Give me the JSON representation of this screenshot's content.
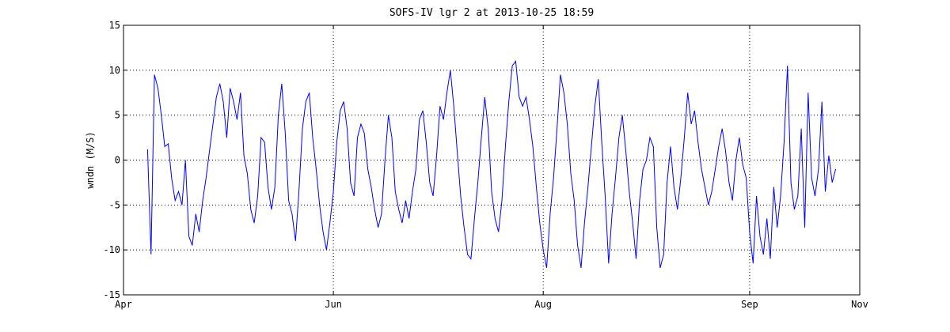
{
  "chart_data": {
    "type": "line",
    "title": "SOFS-IV lgr 2 at 2013-10-25 18:59",
    "xlabel": "",
    "ylabel": "wndn (M/S)",
    "xlim": [
      "2013-04-01",
      "2013-11-01"
    ],
    "ylim": [
      -15,
      15
    ],
    "x_ticks": [
      {
        "date": "2013-04-01",
        "label": "Apr"
      },
      {
        "date": "2013-06-01",
        "label": "Jun"
      },
      {
        "date": "2013-08-01",
        "label": "Aug"
      },
      {
        "date": "2013-09-30",
        "label": "Sep"
      },
      {
        "date": "2013-11-01",
        "label": "Nov"
      }
    ],
    "y_ticks": [
      15,
      10,
      5,
      0,
      -5,
      -10,
      -15
    ],
    "grid": true,
    "line_color": "#0000ff",
    "series": [
      {
        "name": "",
        "points": [
          [
            "2013-04-08",
            1.2
          ],
          [
            "2013-04-09",
            -10.5
          ],
          [
            "2013-04-10",
            9.5
          ],
          [
            "2013-04-11",
            8.0
          ],
          [
            "2013-04-12",
            5.0
          ],
          [
            "2013-04-13",
            1.5
          ],
          [
            "2013-04-14",
            1.8
          ],
          [
            "2013-04-15",
            -2.0
          ],
          [
            "2013-04-16",
            -4.5
          ],
          [
            "2013-04-17",
            -3.5
          ],
          [
            "2013-04-18",
            -5.0
          ],
          [
            "2013-04-19",
            0.0
          ],
          [
            "2013-04-20",
            -8.5
          ],
          [
            "2013-04-21",
            -9.5
          ],
          [
            "2013-04-22",
            -6.0
          ],
          [
            "2013-04-23",
            -8.0
          ],
          [
            "2013-04-24",
            -4.5
          ],
          [
            "2013-04-25",
            -2.0
          ],
          [
            "2013-04-26",
            1.0
          ],
          [
            "2013-04-27",
            4.0
          ],
          [
            "2013-04-28",
            7.0
          ],
          [
            "2013-04-29",
            8.5
          ],
          [
            "2013-04-30",
            6.5
          ],
          [
            "2013-05-01",
            2.5
          ],
          [
            "2013-05-02",
            8.0
          ],
          [
            "2013-05-03",
            6.5
          ],
          [
            "2013-05-04",
            4.5
          ],
          [
            "2013-05-05",
            7.5
          ],
          [
            "2013-05-06",
            0.5
          ],
          [
            "2013-05-07",
            -1.5
          ],
          [
            "2013-05-08",
            -5.5
          ],
          [
            "2013-05-09",
            -7.0
          ],
          [
            "2013-05-10",
            -4.0
          ],
          [
            "2013-05-11",
            2.5
          ],
          [
            "2013-05-12",
            2.0
          ],
          [
            "2013-05-13",
            -3.0
          ],
          [
            "2013-05-14",
            -5.5
          ],
          [
            "2013-05-15",
            -3.0
          ],
          [
            "2013-05-16",
            5.0
          ],
          [
            "2013-05-17",
            8.5
          ],
          [
            "2013-05-18",
            3.0
          ],
          [
            "2013-05-19",
            -4.5
          ],
          [
            "2013-05-20",
            -6.0
          ],
          [
            "2013-05-21",
            -9.0
          ],
          [
            "2013-05-22",
            -3.5
          ],
          [
            "2013-05-23",
            3.5
          ],
          [
            "2013-05-24",
            6.5
          ],
          [
            "2013-05-25",
            7.5
          ],
          [
            "2013-05-26",
            2.5
          ],
          [
            "2013-05-27",
            -1.0
          ],
          [
            "2013-05-28",
            -5.0
          ],
          [
            "2013-05-29",
            -8.0
          ],
          [
            "2013-05-30",
            -10.0
          ],
          [
            "2013-05-31",
            -7.0
          ],
          [
            "2013-06-01",
            -3.5
          ],
          [
            "2013-06-02",
            2.0
          ],
          [
            "2013-06-03",
            5.5
          ],
          [
            "2013-06-04",
            6.5
          ],
          [
            "2013-06-05",
            3.5
          ],
          [
            "2013-06-06",
            -2.5
          ],
          [
            "2013-06-07",
            -4.0
          ],
          [
            "2013-06-08",
            2.5
          ],
          [
            "2013-06-09",
            4.0
          ],
          [
            "2013-06-10",
            3.0
          ],
          [
            "2013-06-11",
            -1.0
          ],
          [
            "2013-06-12",
            -3.0
          ],
          [
            "2013-06-13",
            -5.5
          ],
          [
            "2013-06-14",
            -7.5
          ],
          [
            "2013-06-15",
            -6.0
          ],
          [
            "2013-06-16",
            0.0
          ],
          [
            "2013-06-17",
            5.0
          ],
          [
            "2013-06-18",
            2.5
          ],
          [
            "2013-06-19",
            -3.5
          ],
          [
            "2013-06-20",
            -5.5
          ],
          [
            "2013-06-21",
            -7.0
          ],
          [
            "2013-06-22",
            -4.5
          ],
          [
            "2013-06-23",
            -6.5
          ],
          [
            "2013-06-24",
            -3.5
          ],
          [
            "2013-06-25",
            -1.0
          ],
          [
            "2013-06-26",
            4.5
          ],
          [
            "2013-06-27",
            5.5
          ],
          [
            "2013-06-28",
            2.0
          ],
          [
            "2013-06-29",
            -2.5
          ],
          [
            "2013-06-30",
            -4.0
          ],
          [
            "2013-07-01",
            0.5
          ],
          [
            "2013-07-02",
            6.0
          ],
          [
            "2013-07-03",
            4.5
          ],
          [
            "2013-07-04",
            7.5
          ],
          [
            "2013-07-05",
            10.0
          ],
          [
            "2013-07-06",
            6.0
          ],
          [
            "2013-07-07",
            1.0
          ],
          [
            "2013-07-08",
            -4.0
          ],
          [
            "2013-07-09",
            -7.5
          ],
          [
            "2013-07-10",
            -10.5
          ],
          [
            "2013-07-11",
            -11.0
          ],
          [
            "2013-07-12",
            -6.5
          ],
          [
            "2013-07-13",
            -2.5
          ],
          [
            "2013-07-14",
            2.5
          ],
          [
            "2013-07-15",
            7.0
          ],
          [
            "2013-07-16",
            3.5
          ],
          [
            "2013-07-17",
            -3.5
          ],
          [
            "2013-07-18",
            -6.5
          ],
          [
            "2013-07-19",
            -8.0
          ],
          [
            "2013-07-20",
            -4.5
          ],
          [
            "2013-07-21",
            1.5
          ],
          [
            "2013-07-22",
            6.5
          ],
          [
            "2013-07-23",
            10.5
          ],
          [
            "2013-07-24",
            11.0
          ],
          [
            "2013-07-25",
            7.0
          ],
          [
            "2013-07-26",
            6.0
          ],
          [
            "2013-07-27",
            7.0
          ],
          [
            "2013-07-28",
            4.5
          ],
          [
            "2013-07-29",
            1.5
          ],
          [
            "2013-07-30",
            -3.0
          ],
          [
            "2013-07-31",
            -7.0
          ],
          [
            "2013-08-01",
            -10.0
          ],
          [
            "2013-08-02",
            -12.0
          ],
          [
            "2013-08-03",
            -6.0
          ],
          [
            "2013-08-04",
            -2.0
          ],
          [
            "2013-08-05",
            3.5
          ],
          [
            "2013-08-06",
            9.5
          ],
          [
            "2013-08-07",
            7.5
          ],
          [
            "2013-08-08",
            4.0
          ],
          [
            "2013-08-09",
            -1.5
          ],
          [
            "2013-08-10",
            -4.5
          ],
          [
            "2013-08-11",
            -9.5
          ],
          [
            "2013-08-12",
            -12.0
          ],
          [
            "2013-08-13",
            -7.0
          ],
          [
            "2013-08-14",
            -3.0
          ],
          [
            "2013-08-15",
            1.5
          ],
          [
            "2013-08-16",
            6.0
          ],
          [
            "2013-08-17",
            9.0
          ],
          [
            "2013-08-18",
            2.0
          ],
          [
            "2013-08-19",
            -4.0
          ],
          [
            "2013-08-20",
            -11.5
          ],
          [
            "2013-08-21",
            -6.0
          ],
          [
            "2013-08-22",
            -2.0
          ],
          [
            "2013-08-23",
            2.5
          ],
          [
            "2013-08-24",
            5.0
          ],
          [
            "2013-08-25",
            1.0
          ],
          [
            "2013-08-26",
            -3.5
          ],
          [
            "2013-08-27",
            -7.0
          ],
          [
            "2013-08-28",
            -11.0
          ],
          [
            "2013-08-29",
            -4.5
          ],
          [
            "2013-08-30",
            -1.0
          ],
          [
            "2013-08-31",
            0.0
          ],
          [
            "2013-09-01",
            2.5
          ],
          [
            "2013-09-02",
            1.5
          ],
          [
            "2013-09-03",
            -7.5
          ],
          [
            "2013-09-04",
            -12.0
          ],
          [
            "2013-09-05",
            -10.5
          ],
          [
            "2013-09-06",
            -2.5
          ],
          [
            "2013-09-07",
            1.5
          ],
          [
            "2013-09-08",
            -3.0
          ],
          [
            "2013-09-09",
            -5.5
          ],
          [
            "2013-09-10",
            -2.0
          ],
          [
            "2013-09-11",
            2.5
          ],
          [
            "2013-09-12",
            7.5
          ],
          [
            "2013-09-13",
            4.0
          ],
          [
            "2013-09-14",
            5.5
          ],
          [
            "2013-09-15",
            2.0
          ],
          [
            "2013-09-16",
            -1.0
          ],
          [
            "2013-09-17",
            -3.0
          ],
          [
            "2013-09-18",
            -5.0
          ],
          [
            "2013-09-19",
            -3.5
          ],
          [
            "2013-09-20",
            -1.0
          ],
          [
            "2013-09-21",
            1.5
          ],
          [
            "2013-09-22",
            3.5
          ],
          [
            "2013-09-23",
            1.0
          ],
          [
            "2013-09-24",
            -2.5
          ],
          [
            "2013-09-25",
            -4.5
          ],
          [
            "2013-09-26",
            0.0
          ],
          [
            "2013-09-27",
            2.5
          ],
          [
            "2013-09-28",
            -0.5
          ],
          [
            "2013-09-29",
            -2.0
          ],
          [
            "2013-09-30",
            -8.0
          ],
          [
            "2013-10-01",
            -11.5
          ],
          [
            "2013-10-02",
            -4.0
          ],
          [
            "2013-10-03",
            -8.5
          ],
          [
            "2013-10-04",
            -10.5
          ],
          [
            "2013-10-05",
            -6.5
          ],
          [
            "2013-10-06",
            -11.0
          ],
          [
            "2013-10-07",
            -3.0
          ],
          [
            "2013-10-08",
            -7.5
          ],
          [
            "2013-10-09",
            -4.0
          ],
          [
            "2013-10-10",
            2.0
          ],
          [
            "2013-10-11",
            10.5
          ],
          [
            "2013-10-12",
            -2.5
          ],
          [
            "2013-10-13",
            -5.5
          ],
          [
            "2013-10-14",
            -4.0
          ],
          [
            "2013-10-15",
            3.5
          ],
          [
            "2013-10-16",
            -7.5
          ],
          [
            "2013-10-17",
            7.5
          ],
          [
            "2013-10-18",
            -2.0
          ],
          [
            "2013-10-19",
            -4.0
          ],
          [
            "2013-10-20",
            -1.0
          ],
          [
            "2013-10-21",
            6.5
          ],
          [
            "2013-10-22",
            -3.5
          ],
          [
            "2013-10-23",
            0.5
          ],
          [
            "2013-10-24",
            -2.5
          ],
          [
            "2013-10-25",
            -1.0
          ]
        ]
      }
    ]
  }
}
